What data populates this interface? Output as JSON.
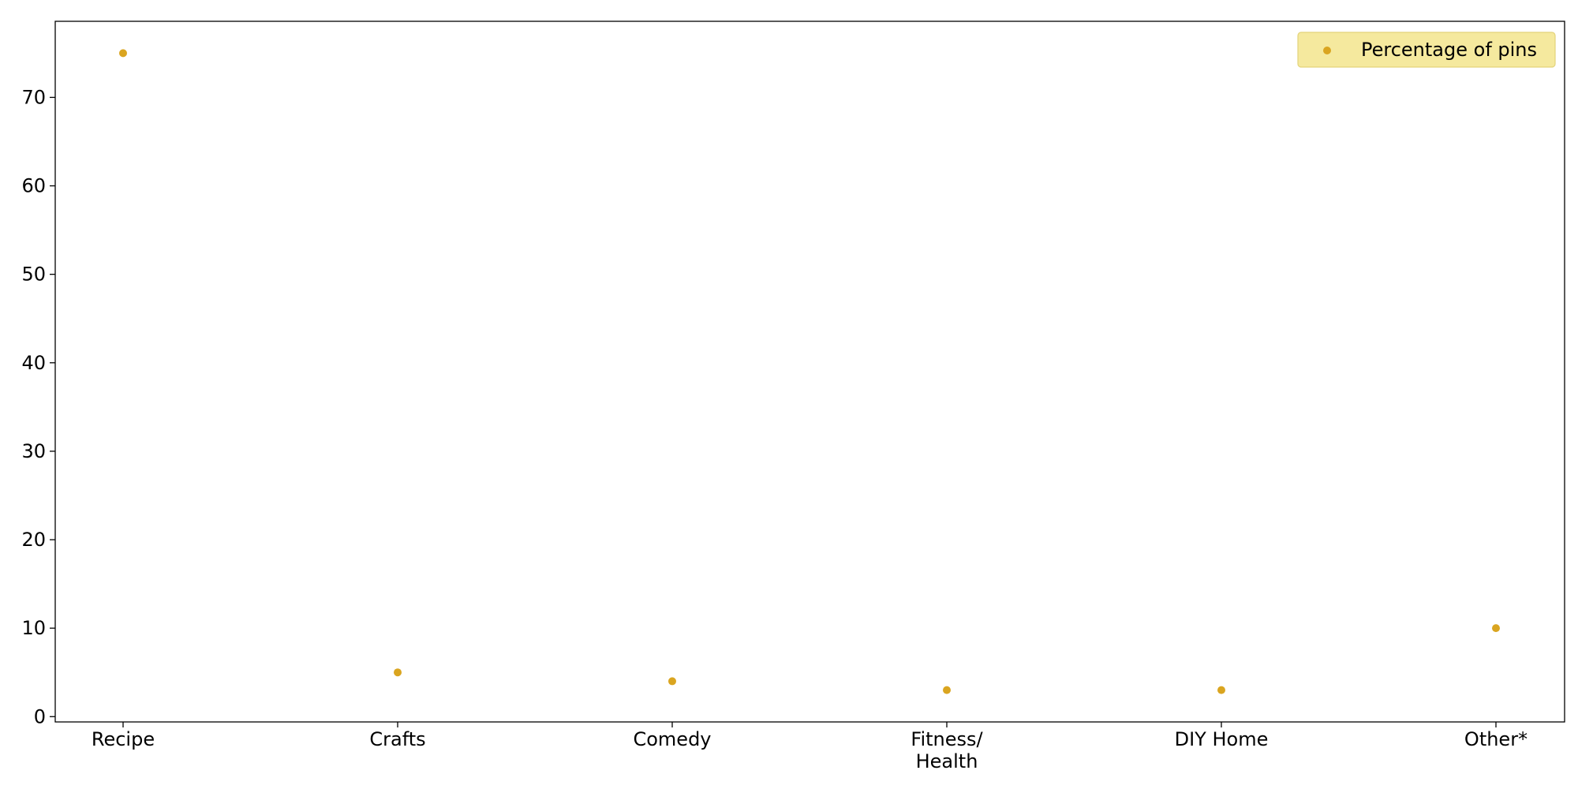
{
  "chart_data": {
    "type": "scatter",
    "categories": [
      "Recipe",
      "Crafts",
      "Comedy",
      "Fitness/\nHealth",
      "DIY Home",
      "Other*"
    ],
    "series": [
      {
        "name": "Percentage of pins",
        "values": [
          75,
          5,
          4,
          3,
          3,
          10
        ],
        "color": "#DAA520"
      }
    ],
    "ylim": [
      -0.6,
      78.6
    ],
    "yticks": [
      0,
      10,
      20,
      30,
      40,
      50,
      60,
      70
    ],
    "title": "",
    "xlabel": "",
    "ylabel": "",
    "grid": false,
    "legend": {
      "placement": "top-right",
      "background": "#F5E99E",
      "border": "#E3D37A"
    }
  }
}
